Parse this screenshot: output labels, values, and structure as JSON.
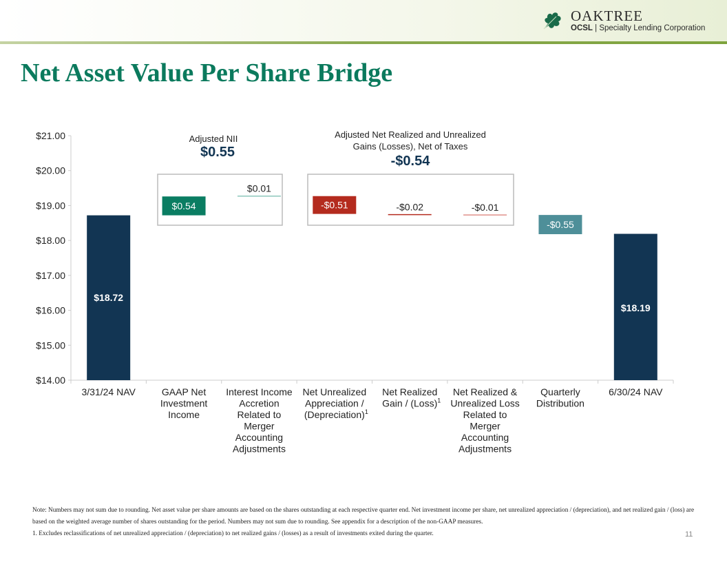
{
  "header": {
    "brand": "OAKTREE",
    "sub_bold": "OCSL",
    "sub_rest": " | Specialty Lending Corporation"
  },
  "title": "Net Asset Value Per Share Bridge",
  "chart_data": {
    "type": "waterfall",
    "ylim": [
      14,
      21
    ],
    "yticks": [
      "$14.00",
      "$15.00",
      "$16.00",
      "$17.00",
      "$18.00",
      "$19.00",
      "$20.00",
      "$21.00"
    ],
    "categories": [
      [
        "3/31/24 NAV"
      ],
      [
        "GAAP Net",
        "Investment",
        "Income"
      ],
      [
        "Interest Income",
        "Accretion",
        "Related to",
        "Merger",
        "Accounting",
        "Adjustments"
      ],
      [
        "Net Unrealized",
        "Appreciation /",
        "(Depreciation)"
      ],
      [
        "Net Realized",
        "Gain / (Loss)"
      ],
      [
        "Net Realized &",
        "Unrealized Loss",
        "Related to",
        "Merger",
        "Accounting",
        "Adjustments"
      ],
      [
        "Quarterly",
        "Distribution"
      ],
      [
        "6/30/24 NAV"
      ]
    ],
    "footnote_marks": [
      "",
      "",
      "",
      "1",
      "1",
      "",
      "",
      ""
    ],
    "bars": [
      {
        "start": 14,
        "end": 18.72,
        "label": "$18.72",
        "color": "#123553",
        "kind": "total"
      },
      {
        "start": 18.72,
        "end": 19.26,
        "label": "$0.54",
        "color": "#0a7d62",
        "kind": "box"
      },
      {
        "start": 19.26,
        "end": 19.27,
        "label": "$0.01",
        "color": "#8cc7bb",
        "kind": "line"
      },
      {
        "start": 19.27,
        "end": 18.76,
        "label": "-$0.51",
        "color": "#b42b1e",
        "kind": "box"
      },
      {
        "start": 18.76,
        "end": 18.74,
        "label": "-$0.02",
        "color": "#b42b1e",
        "kind": "line"
      },
      {
        "start": 18.74,
        "end": 18.73,
        "label": "-$0.01",
        "color": "#e0908a",
        "kind": "line"
      },
      {
        "start": 18.73,
        "end": 18.18,
        "label": "-$0.55",
        "color": "#4e8f99",
        "kind": "box"
      },
      {
        "start": 14,
        "end": 18.19,
        "label": "$18.19",
        "color": "#123553",
        "kind": "total"
      }
    ],
    "groups": [
      {
        "title": [
          "Adjusted NII"
        ],
        "value": "$0.55"
      },
      {
        "title": [
          "Adjusted Net Realized and Unrealized",
          "Gains (Losses), Net of Taxes"
        ],
        "value": "-$0.54"
      }
    ]
  },
  "note": "Note: Numbers may not sum due to rounding. Net asset value per share amounts are based on the shares outstanding at each respective quarter end. Net investment income per share, net unrealized appreciation / (depreciation), and net realized gain / (loss) are based on the weighted average number of shares outstanding for the period. Numbers may not sum due to rounding. See appendix for a description of the non-GAAP measures.",
  "footnote": "1.  Excludes reclassifications of net unrealized appreciation / (depreciation) to net realized gains / (losses) as a result of investments exited during the quarter.",
  "page": "11"
}
